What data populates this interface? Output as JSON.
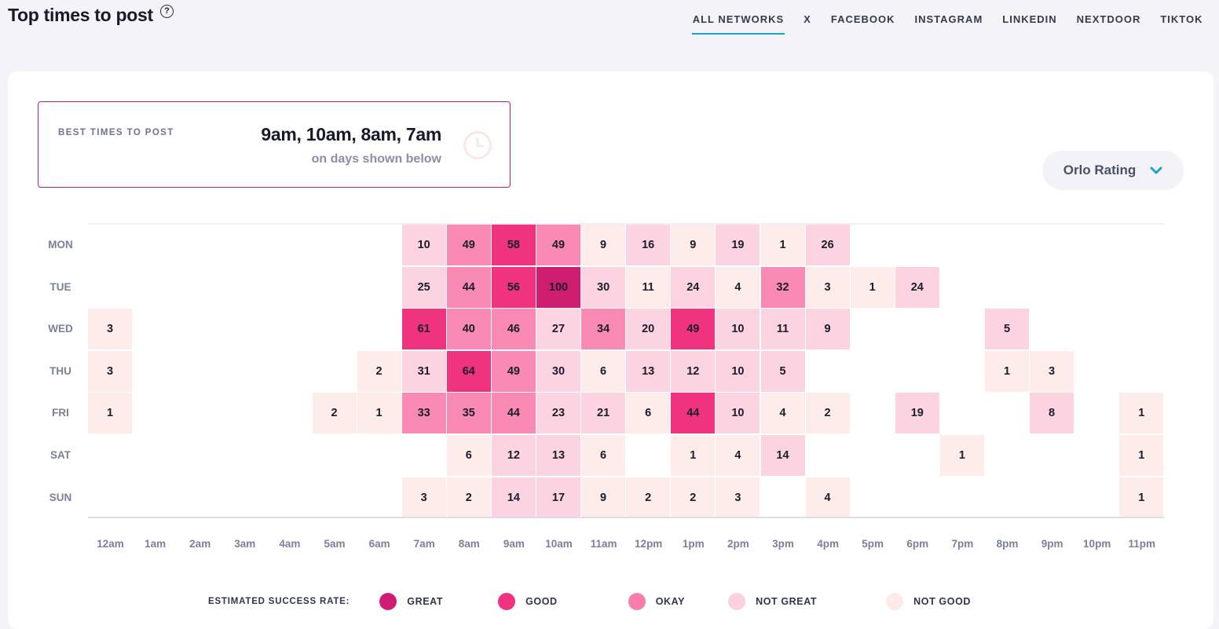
{
  "header": {
    "title": "Top times to post",
    "help_icon": "question-circle-icon",
    "tabs": [
      {
        "label": "ALL NETWORKS",
        "active": true
      },
      {
        "label": "X",
        "active": false
      },
      {
        "label": "FACEBOOK",
        "active": false
      },
      {
        "label": "INSTAGRAM",
        "active": false
      },
      {
        "label": "LINKEDIN",
        "active": false
      },
      {
        "label": "NEXTDOOR",
        "active": false
      },
      {
        "label": "TIKTOK",
        "active": false
      }
    ],
    "accent_color": "#1aa2d6"
  },
  "best_times": {
    "label": "BEST TIMES TO POST",
    "times": "9am, 10am, 8am, 7am",
    "subtitle": "on days shown below",
    "icon": "clock-icon",
    "border_color": "#b3247a"
  },
  "rating_select": {
    "value": "Orlo Rating",
    "icon": "chevron-down-icon"
  },
  "heatmap": {
    "days": [
      "MON",
      "TUE",
      "WED",
      "THU",
      "FRI",
      "SAT",
      "SUN"
    ],
    "hours": [
      "12am",
      "1am",
      "2am",
      "3am",
      "4am",
      "5am",
      "6am",
      "7am",
      "8am",
      "9am",
      "10am",
      "11am",
      "12pm",
      "1pm",
      "2pm",
      "3pm",
      "4pm",
      "5pm",
      "6pm",
      "7pm",
      "8pm",
      "9pm",
      "10pm",
      "11pm"
    ],
    "values": [
      [
        null,
        null,
        null,
        null,
        null,
        null,
        null,
        10,
        49,
        58,
        49,
        9,
        16,
        9,
        19,
        1,
        26,
        null,
        null,
        null,
        null,
        null,
        null,
        null
      ],
      [
        null,
        null,
        null,
        null,
        null,
        null,
        null,
        25,
        44,
        56,
        100,
        30,
        11,
        24,
        4,
        32,
        3,
        1,
        24,
        null,
        null,
        null,
        null,
        null
      ],
      [
        3,
        null,
        null,
        null,
        null,
        null,
        null,
        61,
        40,
        46,
        27,
        34,
        20,
        49,
        10,
        11,
        9,
        null,
        null,
        null,
        5,
        null,
        null,
        null
      ],
      [
        3,
        null,
        null,
        null,
        null,
        null,
        2,
        31,
        64,
        49,
        30,
        6,
        13,
        12,
        10,
        5,
        null,
        null,
        null,
        null,
        1,
        3,
        null,
        null
      ],
      [
        1,
        null,
        null,
        null,
        null,
        2,
        1,
        33,
        35,
        44,
        23,
        21,
        6,
        44,
        10,
        4,
        2,
        null,
        19,
        null,
        null,
        8,
        null,
        1
      ],
      [
        null,
        null,
        null,
        null,
        null,
        null,
        null,
        null,
        6,
        12,
        13,
        6,
        null,
        1,
        4,
        14,
        null,
        null,
        null,
        1,
        null,
        null,
        null,
        1
      ],
      [
        null,
        null,
        null,
        null,
        null,
        null,
        null,
        3,
        2,
        14,
        17,
        9,
        2,
        2,
        3,
        null,
        4,
        null,
        null,
        null,
        null,
        null,
        null,
        1
      ]
    ],
    "levels": [
      [
        null,
        null,
        null,
        null,
        null,
        null,
        null,
        "notgreat",
        "okay",
        "good",
        "okay",
        "notgood",
        "notgreat",
        "notgood",
        "notgreat",
        "notgood",
        "notgreat",
        null,
        null,
        null,
        null,
        null,
        null,
        null
      ],
      [
        null,
        null,
        null,
        null,
        null,
        null,
        null,
        "notgreat",
        "okay",
        "good",
        "great",
        "notgreat",
        "notgood",
        "notgreat",
        "notgood",
        "okay",
        "notgood",
        "notgood",
        "notgreat",
        null,
        null,
        null,
        null,
        null
      ],
      [
        "notgood",
        null,
        null,
        null,
        null,
        null,
        null,
        "good",
        "okay",
        "okay",
        "notgreat",
        "okay",
        "notgreat",
        "good",
        "notgreat",
        "notgreat",
        "notgreat",
        null,
        null,
        null,
        "notgreat",
        null,
        null,
        null
      ],
      [
        "notgood",
        null,
        null,
        null,
        null,
        null,
        "notgood",
        "notgreat",
        "good",
        "okay",
        "notgreat",
        "notgood",
        "notgreat",
        "notgreat",
        "notgreat",
        "notgreat",
        null,
        null,
        null,
        null,
        "notgood",
        "notgood",
        null,
        null
      ],
      [
        "notgood",
        null,
        null,
        null,
        null,
        "notgood",
        "notgood",
        "okay",
        "okay",
        "okay",
        "notgreat",
        "notgreat",
        "notgood",
        "good",
        "notgreat",
        "notgood",
        "notgood",
        null,
        "notgreat",
        null,
        null,
        "notgreat",
        null,
        "notgood"
      ],
      [
        null,
        null,
        null,
        null,
        null,
        null,
        null,
        null,
        "notgood",
        "notgreat",
        "notgreat",
        "notgood",
        null,
        "notgood",
        "notgood",
        "notgreat",
        null,
        null,
        null,
        "notgood",
        null,
        null,
        null,
        "notgood"
      ],
      [
        null,
        null,
        null,
        null,
        null,
        null,
        null,
        "notgood",
        "notgood",
        "notgreat",
        "notgreat",
        "notgood",
        "notgood",
        "notgood",
        "notgood",
        null,
        "notgood",
        null,
        null,
        null,
        null,
        null,
        null,
        "notgood"
      ]
    ],
    "level_colors": {
      "great": "#d01d73",
      "good": "#f2327e",
      "okay": "#f97dab",
      "notgreat": "#fbd1df",
      "notgood": "#fdeae8"
    },
    "cell_colors": {
      "great": "#cf1e6f",
      "good": "#f0337f",
      "okay": "#f98ab4",
      "notgreat": "#fbd3e1",
      "notgood": "#fdecea"
    }
  },
  "legend": {
    "title": "ESTIMATED SUCCESS RATE:",
    "items": [
      {
        "label": "GREAT",
        "level": "great"
      },
      {
        "label": "GOOD",
        "level": "good"
      },
      {
        "label": "OKAY",
        "level": "okay"
      },
      {
        "label": "NOT GREAT",
        "level": "notgreat"
      },
      {
        "label": "NOT GOOD",
        "level": "notgood"
      }
    ]
  }
}
